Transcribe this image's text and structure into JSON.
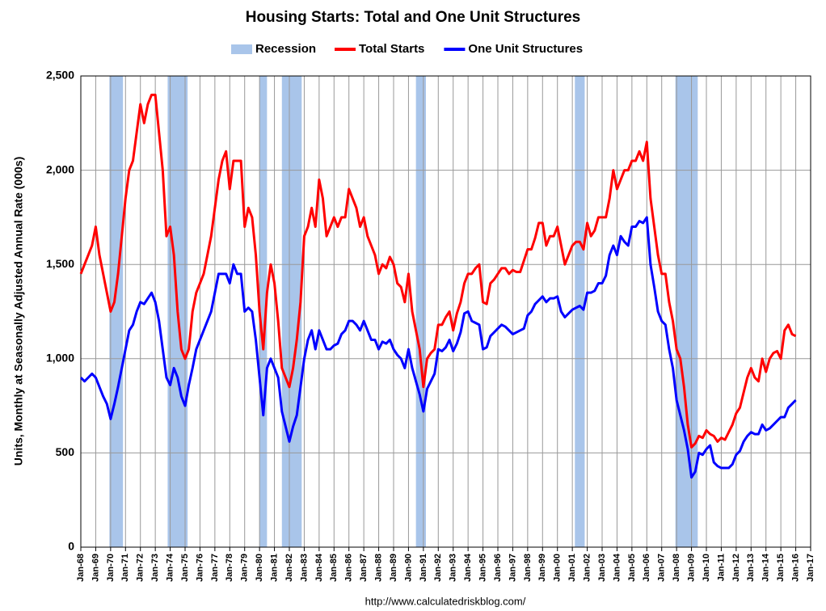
{
  "chart_data": {
    "type": "line",
    "title": "Housing Starts: Total and One Unit Structures",
    "y_label": "Units, Monthly at Seasonally Adjusted Annual Rate (000s)",
    "source": "http://www.calculatedriskblog.com/",
    "recessions": {
      "name": "Recession",
      "color": "#a9c5ea",
      "spans": [
        [
          1969.92,
          1970.83
        ],
        [
          1973.83,
          1975.17
        ],
        [
          1980.0,
          1980.5
        ],
        [
          1981.5,
          1982.83
        ],
        [
          1990.5,
          1991.17
        ],
        [
          2001.17,
          2001.83
        ],
        [
          2007.92,
          2009.42
        ]
      ]
    },
    "x": [
      1968,
      1968.25,
      1968.5,
      1968.75,
      1969,
      1969.25,
      1969.5,
      1969.75,
      1970,
      1970.25,
      1970.5,
      1970.75,
      1971,
      1971.25,
      1971.5,
      1971.75,
      1972,
      1972.25,
      1972.5,
      1972.75,
      1973,
      1973.25,
      1973.5,
      1973.75,
      1974,
      1974.25,
      1974.5,
      1974.75,
      1975,
      1975.25,
      1975.5,
      1975.75,
      1976,
      1976.25,
      1976.5,
      1976.75,
      1977,
      1977.25,
      1977.5,
      1977.75,
      1978,
      1978.25,
      1978.5,
      1978.75,
      1979,
      1979.25,
      1979.5,
      1979.75,
      1980,
      1980.25,
      1980.5,
      1980.75,
      1981,
      1981.25,
      1981.5,
      1981.75,
      1982,
      1982.25,
      1982.5,
      1982.75,
      1983,
      1983.25,
      1983.5,
      1983.75,
      1984,
      1984.25,
      1984.5,
      1984.75,
      1985,
      1985.25,
      1985.5,
      1985.75,
      1986,
      1986.25,
      1986.5,
      1986.75,
      1987,
      1987.25,
      1987.5,
      1987.75,
      1988,
      1988.25,
      1988.5,
      1988.75,
      1989,
      1989.25,
      1989.5,
      1989.75,
      1990,
      1990.25,
      1990.5,
      1990.75,
      1991,
      1991.25,
      1991.5,
      1991.75,
      1992,
      1992.25,
      1992.5,
      1992.75,
      1993,
      1993.25,
      1993.5,
      1993.75,
      1994,
      1994.25,
      1994.5,
      1994.75,
      1995,
      1995.25,
      1995.5,
      1995.75,
      1996,
      1996.25,
      1996.5,
      1996.75,
      1997,
      1997.25,
      1997.5,
      1997.75,
      1998,
      1998.25,
      1998.5,
      1998.75,
      1999,
      1999.25,
      1999.5,
      1999.75,
      2000,
      2000.25,
      2000.5,
      2000.75,
      2001,
      2001.25,
      2001.5,
      2001.75,
      2002,
      2002.25,
      2002.5,
      2002.75,
      2003,
      2003.25,
      2003.5,
      2003.75,
      2004,
      2004.25,
      2004.5,
      2004.75,
      2005,
      2005.25,
      2005.5,
      2005.75,
      2006,
      2006.25,
      2006.5,
      2006.75,
      2007,
      2007.25,
      2007.5,
      2007.75,
      2008,
      2008.25,
      2008.5,
      2008.75,
      2009,
      2009.25,
      2009.5,
      2009.75,
      2010,
      2010.25,
      2010.5,
      2010.75,
      2011,
      2011.25,
      2011.5,
      2011.75,
      2012,
      2012.25,
      2012.5,
      2012.75,
      2013,
      2013.25,
      2013.5,
      2013.75,
      2014,
      2014.25,
      2014.5,
      2014.75,
      2015,
      2015.25,
      2015.5,
      2015.75,
      2016
    ],
    "series": [
      {
        "name": "Total Starts",
        "color": "#ff0000",
        "values": [
          1450,
          1500,
          1550,
          1600,
          1700,
          1550,
          1450,
          1350,
          1250,
          1300,
          1450,
          1650,
          1850,
          2000,
          2050,
          2200,
          2350,
          2250,
          2350,
          2400,
          2400,
          2200,
          2000,
          1650,
          1700,
          1550,
          1250,
          1050,
          1000,
          1050,
          1250,
          1350,
          1400,
          1450,
          1550,
          1650,
          1800,
          1950,
          2050,
          2100,
          1900,
          2050,
          2050,
          2050,
          1700,
          1800,
          1750,
          1550,
          1250,
          1050,
          1350,
          1500,
          1400,
          1200,
          950,
          900,
          850,
          950,
          1100,
          1300,
          1650,
          1700,
          1800,
          1700,
          1950,
          1850,
          1650,
          1700,
          1750,
          1700,
          1750,
          1750,
          1900,
          1850,
          1800,
          1700,
          1750,
          1650,
          1600,
          1550,
          1450,
          1500,
          1480,
          1540,
          1500,
          1400,
          1380,
          1300,
          1450,
          1250,
          1150,
          1050,
          850,
          1000,
          1030,
          1050,
          1180,
          1180,
          1220,
          1250,
          1150,
          1240,
          1300,
          1400,
          1450,
          1450,
          1480,
          1500,
          1300,
          1290,
          1400,
          1420,
          1450,
          1480,
          1480,
          1450,
          1470,
          1460,
          1460,
          1520,
          1580,
          1580,
          1640,
          1720,
          1720,
          1600,
          1650,
          1650,
          1700,
          1600,
          1500,
          1550,
          1600,
          1620,
          1620,
          1580,
          1720,
          1650,
          1680,
          1750,
          1750,
          1750,
          1850,
          2000,
          1900,
          1950,
          2000,
          2000,
          2050,
          2050,
          2100,
          2050,
          2150,
          1850,
          1700,
          1550,
          1450,
          1450,
          1300,
          1200,
          1050,
          1000,
          850,
          650,
          530,
          550,
          590,
          580,
          620,
          600,
          590,
          560,
          580,
          570,
          610,
          650,
          710,
          740,
          820,
          900,
          950,
          900,
          880,
          1000,
          930,
          1000,
          1030,
          1040,
          1000,
          1150,
          1180,
          1130,
          1120
        ]
      },
      {
        "name": "One Unit Structures",
        "color": "#0000ff",
        "values": [
          900,
          880,
          900,
          920,
          900,
          850,
          800,
          760,
          680,
          760,
          850,
          950,
          1050,
          1150,
          1180,
          1250,
          1300,
          1290,
          1320,
          1350,
          1300,
          1200,
          1050,
          900,
          860,
          950,
          900,
          800,
          750,
          860,
          950,
          1050,
          1100,
          1150,
          1200,
          1250,
          1350,
          1450,
          1450,
          1450,
          1400,
          1500,
          1450,
          1450,
          1250,
          1270,
          1250,
          1100,
          900,
          700,
          950,
          1000,
          950,
          900,
          720,
          640,
          560,
          640,
          700,
          850,
          1000,
          1100,
          1150,
          1050,
          1150,
          1100,
          1050,
          1050,
          1070,
          1080,
          1130,
          1150,
          1200,
          1200,
          1180,
          1150,
          1200,
          1150,
          1100,
          1100,
          1050,
          1090,
          1080,
          1100,
          1050,
          1020,
          1000,
          950,
          1050,
          950,
          880,
          810,
          720,
          840,
          880,
          920,
          1050,
          1040,
          1060,
          1100,
          1040,
          1080,
          1140,
          1240,
          1250,
          1200,
          1190,
          1180,
          1050,
          1060,
          1120,
          1140,
          1160,
          1180,
          1170,
          1150,
          1130,
          1140,
          1150,
          1160,
          1230,
          1250,
          1290,
          1310,
          1330,
          1300,
          1320,
          1320,
          1330,
          1250,
          1220,
          1240,
          1260,
          1270,
          1280,
          1260,
          1350,
          1350,
          1360,
          1400,
          1400,
          1440,
          1550,
          1600,
          1550,
          1650,
          1620,
          1600,
          1700,
          1700,
          1730,
          1720,
          1750,
          1500,
          1380,
          1250,
          1200,
          1180,
          1050,
          950,
          780,
          700,
          620,
          520,
          370,
          400,
          500,
          490,
          520,
          540,
          450,
          430,
          420,
          420,
          420,
          440,
          490,
          510,
          560,
          590,
          610,
          600,
          600,
          650,
          620,
          630,
          650,
          670,
          690,
          690,
          740,
          760,
          780
        ]
      }
    ],
    "xlim": [
      1968,
      2017
    ],
    "xticks": [
      {
        "value": 1968,
        "label": "Jan-68"
      },
      {
        "value": 1969,
        "label": "Jan-69"
      },
      {
        "value": 1970,
        "label": "Jan-70"
      },
      {
        "value": 1971,
        "label": "Jan-71"
      },
      {
        "value": 1972,
        "label": "Jan-72"
      },
      {
        "value": 1973,
        "label": "Jan-73"
      },
      {
        "value": 1974,
        "label": "Jan-74"
      },
      {
        "value": 1975,
        "label": "Jan-75"
      },
      {
        "value": 1976,
        "label": "Jan-76"
      },
      {
        "value": 1977,
        "label": "Jan-77"
      },
      {
        "value": 1978,
        "label": "Jan-78"
      },
      {
        "value": 1979,
        "label": "Jan-79"
      },
      {
        "value": 1980,
        "label": "Jan-80"
      },
      {
        "value": 1981,
        "label": "Jan-81"
      },
      {
        "value": 1982,
        "label": "Jan-82"
      },
      {
        "value": 1983,
        "label": "Jan-83"
      },
      {
        "value": 1984,
        "label": "Jan-84"
      },
      {
        "value": 1985,
        "label": "Jan-85"
      },
      {
        "value": 1986,
        "label": "Jan-86"
      },
      {
        "value": 1987,
        "label": "Jan-87"
      },
      {
        "value": 1988,
        "label": "Jan-88"
      },
      {
        "value": 1989,
        "label": "Jan-89"
      },
      {
        "value": 1990,
        "label": "Jan-90"
      },
      {
        "value": 1991,
        "label": "Jan-91"
      },
      {
        "value": 1992,
        "label": "Jan-92"
      },
      {
        "value": 1993,
        "label": "Jan-93"
      },
      {
        "value": 1994,
        "label": "Jan-94"
      },
      {
        "value": 1995,
        "label": "Jan-95"
      },
      {
        "value": 1996,
        "label": "Jan-96"
      },
      {
        "value": 1997,
        "label": "Jan-97"
      },
      {
        "value": 1998,
        "label": "Jan-98"
      },
      {
        "value": 1999,
        "label": "Jan-99"
      },
      {
        "value": 2000,
        "label": "Jan-00"
      },
      {
        "value": 2001,
        "label": "Jan-01"
      },
      {
        "value": 2002,
        "label": "Jan-02"
      },
      {
        "value": 2003,
        "label": "Jan-03"
      },
      {
        "value": 2004,
        "label": "Jan-04"
      },
      {
        "value": 2005,
        "label": "Jan-05"
      },
      {
        "value": 2006,
        "label": "Jan-06"
      },
      {
        "value": 2007,
        "label": "Jan-07"
      },
      {
        "value": 2008,
        "label": "Jan-08"
      },
      {
        "value": 2009,
        "label": "Jan-09"
      },
      {
        "value": 2010,
        "label": "Jan-10"
      },
      {
        "value": 2011,
        "label": "Jan-11"
      },
      {
        "value": 2012,
        "label": "Jan-12"
      },
      {
        "value": 2013,
        "label": "Jan-13"
      },
      {
        "value": 2014,
        "label": "Jan-14"
      },
      {
        "value": 2015,
        "label": "Jan-15"
      },
      {
        "value": 2016,
        "label": "Jan-16"
      },
      {
        "value": 2017,
        "label": "Jan-17"
      }
    ],
    "ylim": [
      0,
      2500
    ],
    "yticks": [
      0,
      500,
      {
        "value": 1000,
        "label": "1,000"
      },
      {
        "value": 1500,
        "label": "1,500"
      },
      {
        "value": 2000,
        "label": "2,000"
      },
      {
        "value": 2500,
        "label": "2,500"
      }
    ],
    "grid": true
  }
}
